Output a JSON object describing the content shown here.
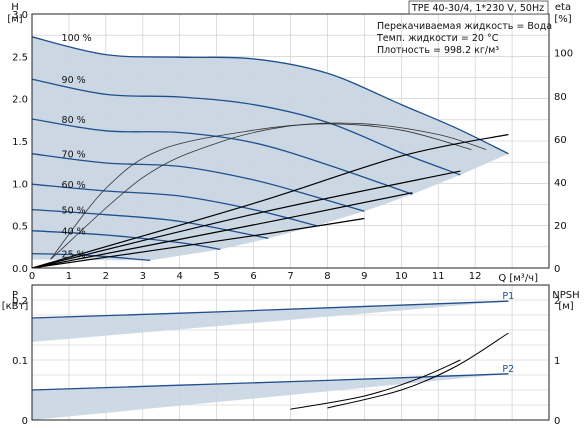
{
  "header": {
    "model": "TPE 40-30/4, 1*230 V, 50Hz",
    "medium": "Перекачиваемая жидкость = Вода",
    "temperature": "Темп. жидкости = 20 °C",
    "density": "Плотность = 998.2 кг/м³"
  },
  "chart_data": [
    {
      "type": "line",
      "panel": "H/eta vs Q",
      "xlabel": "Q [м³/ч]",
      "ylabel_left": "H",
      "ylabel_left_unit": "[м]",
      "ylabel_right": "eta",
      "ylabel_right_unit": "[%]",
      "xlim": [
        0,
        14
      ],
      "ylim_left": [
        0,
        3.0
      ],
      "ylim_right": [
        0,
        118
      ],
      "x_ticks": [
        "0",
        "1",
        "2",
        "3",
        "4",
        "5",
        "6",
        "7",
        "8",
        "9",
        "10",
        "11",
        "12"
      ],
      "y_ticks_left": [
        "0.0",
        "0.5",
        "1.0",
        "1.5",
        "2.0",
        "2.5",
        "3.0"
      ],
      "y_ticks_right": [
        "0",
        "20",
        "40",
        "60",
        "80",
        "100"
      ],
      "grid": true,
      "speed_curves": [
        {
          "name": "100 %",
          "x": [
            0,
            2,
            4,
            6,
            8,
            10,
            11.5,
            12.9
          ],
          "y": [
            2.73,
            2.52,
            2.49,
            2.47,
            2.3,
            1.93,
            1.65,
            1.35
          ]
        },
        {
          "name": "90 %",
          "x": [
            0,
            2,
            4,
            6,
            8,
            10,
            11.6
          ],
          "y": [
            2.23,
            2.05,
            2.02,
            1.93,
            1.72,
            1.36,
            1.1
          ]
        },
        {
          "name": "80 %",
          "x": [
            0,
            2,
            4,
            6,
            8,
            10.3
          ],
          "y": [
            1.76,
            1.62,
            1.6,
            1.48,
            1.22,
            0.87
          ]
        },
        {
          "name": "70 %",
          "x": [
            0,
            2,
            4,
            6,
            7.6,
            9.0
          ],
          "y": [
            1.35,
            1.24,
            1.2,
            1.04,
            0.85,
            0.67
          ]
        },
        {
          "name": "60 %",
          "x": [
            0,
            2,
            4,
            6,
            7.7
          ],
          "y": [
            0.99,
            0.91,
            0.85,
            0.69,
            0.5
          ]
        },
        {
          "name": "50 %",
          "x": [
            0,
            2,
            4,
            6.4
          ],
          "y": [
            0.69,
            0.63,
            0.55,
            0.35
          ]
        },
        {
          "name": "40 %",
          "x": [
            0,
            2,
            4,
            5.1
          ],
          "y": [
            0.44,
            0.39,
            0.3,
            0.22
          ]
        },
        {
          "name": "25 %",
          "x": [
            0,
            1.5,
            3.2
          ],
          "y": [
            0.17,
            0.15,
            0.09
          ]
        }
      ],
      "efficiency_curves": [
        {
          "x": [
            0.5,
            2,
            3.5,
            6,
            8,
            10,
            11.9
          ],
          "eta": [
            4,
            37,
            55,
            64,
            67,
            64,
            55
          ]
        },
        {
          "x": [
            0.5,
            3,
            5,
            7,
            9,
            11,
            12.3
          ],
          "eta": [
            4,
            42,
            58,
            66,
            67,
            62,
            55
          ]
        }
      ],
      "power_curves_right_axis": [
        {
          "x": [
            0,
            6,
            10,
            12.9
          ],
          "y": [
            0,
            0.3,
            0.52,
            0.62
          ]
        },
        {
          "x": [
            0,
            6,
            11.6
          ],
          "y": [
            0,
            0.25,
            0.45
          ]
        },
        {
          "x": [
            0,
            6,
            10.3
          ],
          "y": [
            0,
            0.2,
            0.35
          ]
        },
        {
          "x": [
            0,
            6,
            9.0
          ],
          "y": [
            0,
            0.15,
            0.23
          ]
        }
      ]
    },
    {
      "type": "line",
      "panel": "P/NPSH vs Q",
      "ylabel_left": "P",
      "ylabel_left_unit": "[кВт]",
      "ylabel_right": "NPSH",
      "ylabel_right_unit": "[м]",
      "xlim": [
        0,
        14
      ],
      "ylim_left": [
        0,
        0.225
      ],
      "ylim_right": [
        0,
        2.25
      ],
      "y_ticks_left": [
        "0",
        "0.1",
        "0.2"
      ],
      "y_ticks_right": [
        "0",
        "1",
        "2"
      ],
      "grid": true,
      "series": [
        {
          "name": "P1",
          "x": [
            0,
            4,
            8,
            12.9
          ],
          "y": [
            0.17,
            0.178,
            0.187,
            0.198
          ]
        },
        {
          "name": "P2",
          "x": [
            0,
            4,
            8,
            12.9
          ],
          "y": [
            0.05,
            0.058,
            0.066,
            0.077
          ]
        }
      ],
      "npsh_curves": [
        {
          "x": [
            8,
            10,
            11.5,
            12.9
          ],
          "npsh": [
            0.2,
            0.5,
            0.9,
            1.45
          ]
        },
        {
          "x": [
            7,
            9,
            10.5,
            11.6
          ],
          "npsh": [
            0.18,
            0.4,
            0.7,
            1.0
          ]
        }
      ]
    }
  ]
}
